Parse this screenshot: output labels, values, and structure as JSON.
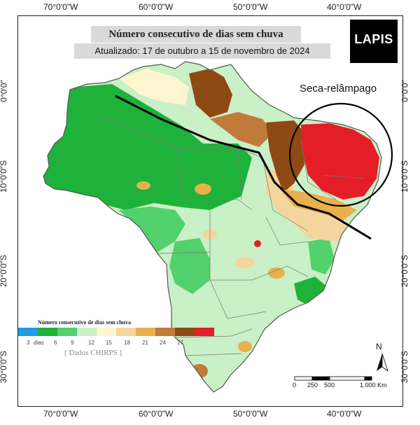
{
  "map": {
    "title": "Número consecutivo de dias sem chuva",
    "subtitle": "Atualizado: 17 de outubro a 15 de novembro de 2024",
    "logo_text": "LAPIS",
    "annotation": "Seca-relâmpago",
    "coords": {
      "lon": [
        "70°0'0\"W",
        "60°0'0\"W",
        "50°0'0\"W",
        "40°0'0\"W"
      ],
      "lat": [
        "0°0'0\"",
        "10°0'0\"S",
        "20°0'0\"S",
        "30°0'0\"S"
      ]
    },
    "north": "N",
    "scale": {
      "labels": [
        "0",
        "250",
        "500",
        "1.000 Km"
      ]
    }
  },
  "legend": {
    "title": "Número consecutivo de dias sem chuva",
    "ticks": [
      "3",
      "dias",
      "6",
      "9",
      "12",
      "15",
      "18",
      "21",
      "24",
      "27"
    ],
    "source": "[ Dados CHIRPS ]",
    "colors": [
      "#1e9ee0",
      "#1fb23a",
      "#52d16c",
      "#c9f0c6",
      "#fdf5cf",
      "#f5d59e",
      "#e9b04e",
      "#c07a3a",
      "#8e4a12",
      "#e31e26"
    ]
  }
}
